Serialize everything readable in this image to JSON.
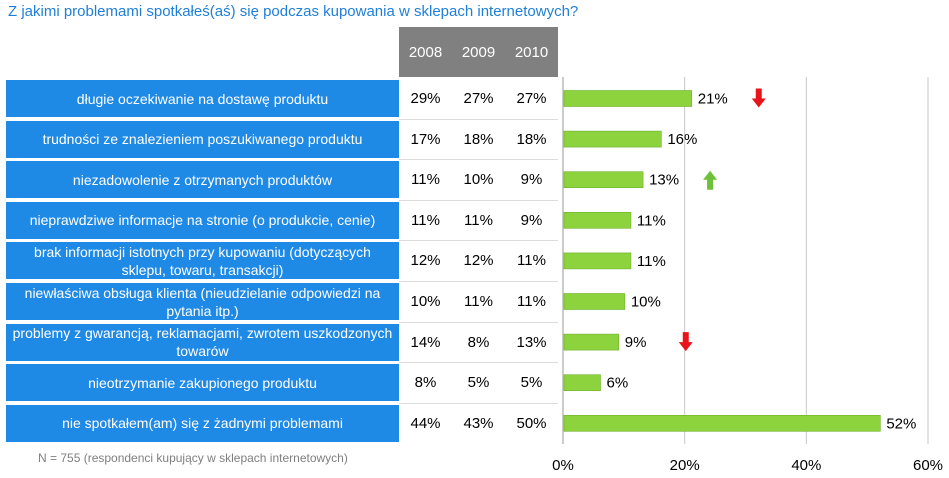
{
  "title": "Z jakimi problemami spotkałeś(aś) się podczas kupowania w sklepach internetowych?",
  "note": "N = 755 (respondenci kupujący w sklepach internetowych)",
  "colors": {
    "label_bg": "#1f89e6",
    "header_bg": "#808080",
    "bar": "#8dd33e",
    "arrow_down": "#e8141a",
    "arrow_up": "#6cc03a"
  },
  "chart_data": {
    "type": "bar",
    "orientation": "horizontal",
    "year_headers": [
      "2008",
      "2009",
      "2010"
    ],
    "categories": [
      "długie oczekiwanie na dostawę produktu",
      "trudności ze znalezieniem poszukiwanego produktu",
      "niezadowolenie z otrzymanych produktów",
      "nieprawdziwe informacje na stronie (o produkcie, cenie)",
      "brak informacji istotnych przy kupowaniu (dotyczących sklepu, towaru, transakcji)",
      "niewłaściwa obsługa klienta (nieudzielanie odpowiedzi na pytania itp.)",
      "problemy z gwarancją, reklamacjami, zwrotem uszkodzonych towarów",
      "nieotrzymanie zakupionego produktu",
      "nie spotkałem(am) się z żadnymi problemami"
    ],
    "table_values": [
      [
        "29%",
        "27%",
        "27%"
      ],
      [
        "17%",
        "18%",
        "18%"
      ],
      [
        "11%",
        "10%",
        "9%"
      ],
      [
        "11%",
        "11%",
        "9%"
      ],
      [
        "12%",
        "12%",
        "11%"
      ],
      [
        "10%",
        "11%",
        "11%"
      ],
      [
        "14%",
        "8%",
        "13%"
      ],
      [
        "8%",
        "5%",
        "5%"
      ],
      [
        "44%",
        "43%",
        "50%"
      ]
    ],
    "values": [
      21,
      16,
      13,
      11,
      11,
      10,
      9,
      6,
      52
    ],
    "value_labels": [
      "21%",
      "16%",
      "13%",
      "11%",
      "11%",
      "10%",
      "9%",
      "6%",
      "52%"
    ],
    "trends": [
      "down",
      "",
      "up",
      "",
      "",
      "",
      "down",
      "",
      ""
    ],
    "xlim": [
      0,
      60
    ],
    "x_ticks": [
      0,
      20,
      40,
      60
    ],
    "x_tick_labels": [
      "0%",
      "20%",
      "40%",
      "60%"
    ],
    "grid": true
  }
}
